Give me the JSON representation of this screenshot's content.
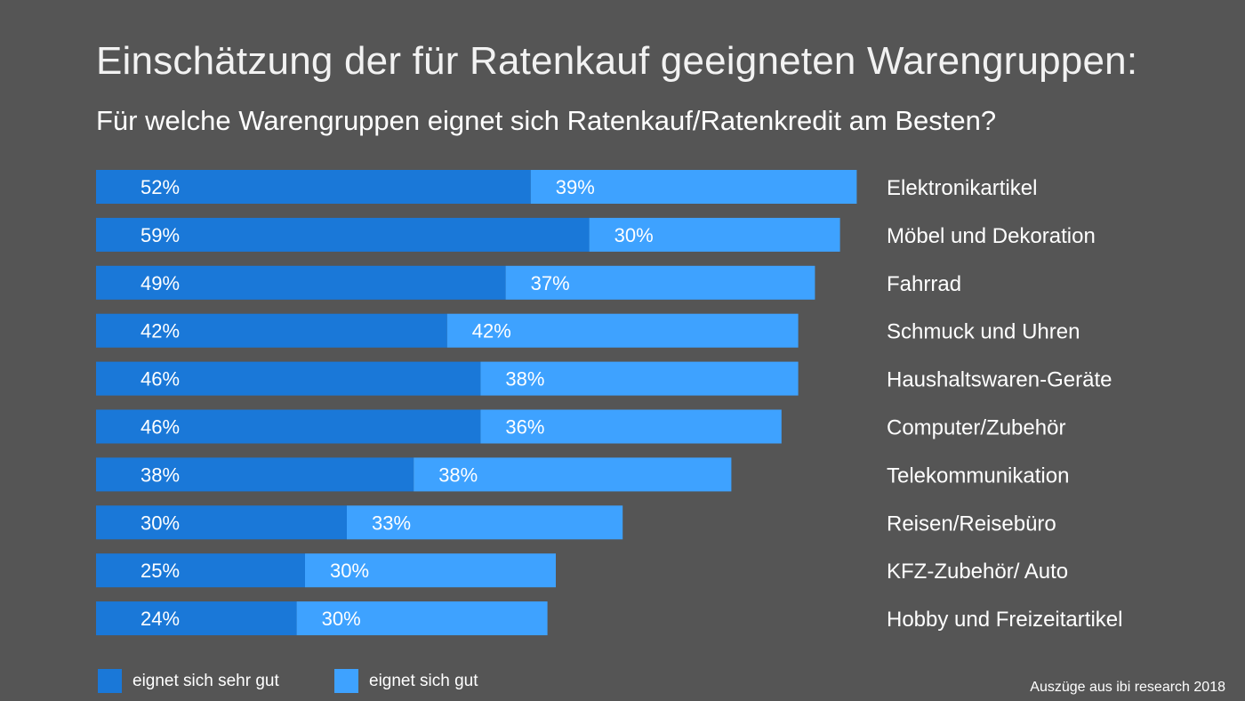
{
  "chart_data": {
    "type": "bar",
    "orientation": "horizontal",
    "stacked": true,
    "title": "Einschätzung der für Ratenkauf geeigneten Warengruppen:",
    "subtitle": "Für welche Warengruppen eignet sich Ratenkauf/Ratenkredit am Besten?",
    "categories": [
      "Elektronikartikel",
      "Möbel und Dekoration",
      "Fahrrad",
      "Schmuck und Uhren",
      "Haushaltswaren-Geräte",
      "Computer/Zubehör",
      "Telekommunikation",
      "Reisen/Reisebüro",
      "KFZ-Zubehör/ Auto",
      "Hobby und Freizeitartikel"
    ],
    "series": [
      {
        "name": "eignet sich sehr gut",
        "color": "#1a78d8",
        "values": [
          52,
          59,
          49,
          42,
          46,
          46,
          38,
          30,
          25,
          24
        ],
        "labels": [
          "52%",
          "59%",
          "49%",
          "42%",
          "46%",
          "46%",
          "38%",
          "30%",
          "25%",
          "24%"
        ]
      },
      {
        "name": "eignet sich gut",
        "color": "#3ea2ff",
        "values": [
          39,
          30,
          37,
          42,
          38,
          36,
          38,
          33,
          30,
          30
        ],
        "labels": [
          "39%",
          "30%",
          "37%",
          "42%",
          "38%",
          "36%",
          "38%",
          "33%",
          "30%",
          "30%"
        ]
      }
    ],
    "legend_position": "bottom-left",
    "grid": false
  },
  "footer": {
    "source": "Auszüge aus ibi research 2018"
  }
}
